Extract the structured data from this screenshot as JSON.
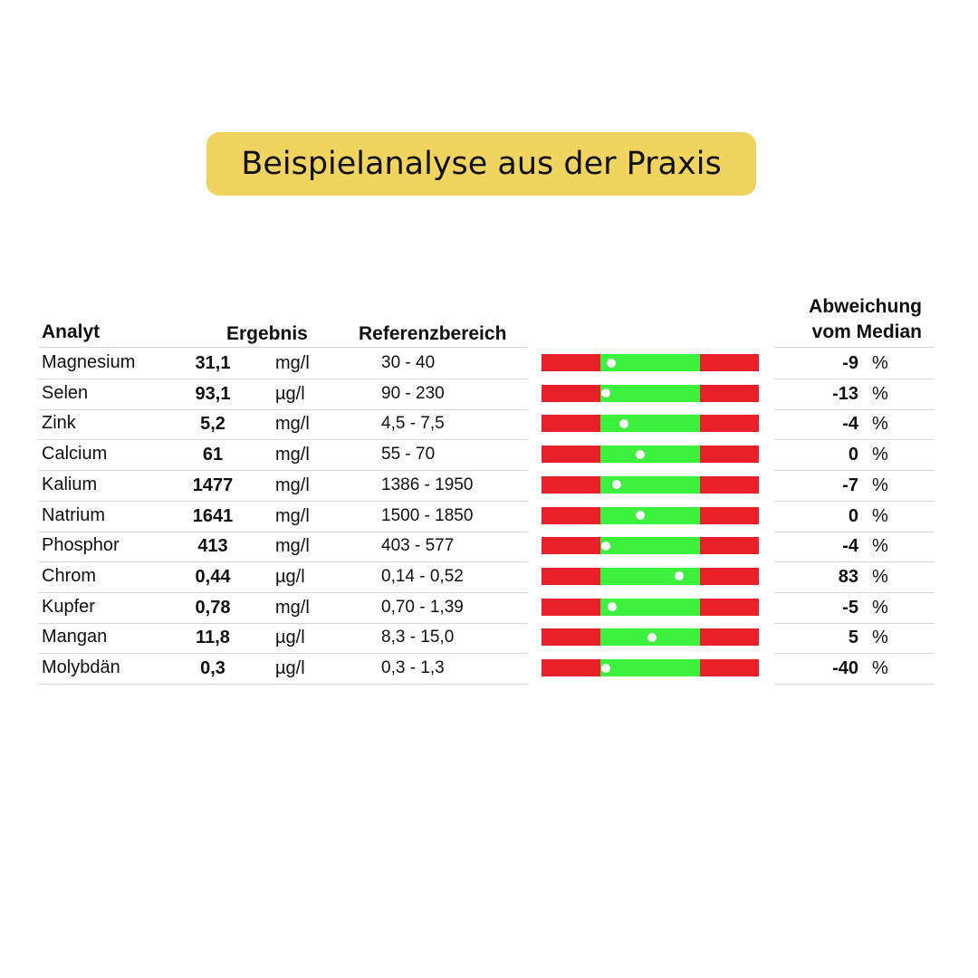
{
  "header": {
    "title": "Beispielanalyse aus der Praxis"
  },
  "table": {
    "columns": {
      "analyte": "Analyt",
      "result": "Ergebnis",
      "reference": "Referenzbereich",
      "deviation": [
        "Abweichung",
        "vom Median"
      ]
    },
    "rows": [
      {
        "analyte": "Magnesium",
        "result": "31,1",
        "unit": "mg/l",
        "reference": "30 - 40",
        "deviation": -9,
        "deviation_unit": "%"
      },
      {
        "analyte": "Selen",
        "result": "93,1",
        "unit": "µg/l",
        "reference": "90 - 230",
        "deviation": -13,
        "deviation_unit": "%"
      },
      {
        "analyte": "Zink",
        "result": "5,2",
        "unit": "mg/l",
        "reference": "4,5 - 7,5",
        "deviation": -4,
        "deviation_unit": "%"
      },
      {
        "analyte": "Calcium",
        "result": "61",
        "unit": "mg/l",
        "reference": "55 - 70",
        "deviation": 0,
        "deviation_unit": "%"
      },
      {
        "analyte": "Kalium",
        "result": "1477",
        "unit": "mg/l",
        "reference": "1386 - 1950",
        "deviation": -7,
        "deviation_unit": "%"
      },
      {
        "analyte": "Natrium",
        "result": "1641",
        "unit": "mg/l",
        "reference": "1500 - 1850",
        "deviation": 0,
        "deviation_unit": "%"
      },
      {
        "analyte": "Phosphor",
        "result": "413",
        "unit": "mg/l",
        "reference": "403 - 577",
        "deviation": -4,
        "deviation_unit": "%"
      },
      {
        "analyte": "Chrom",
        "result": "0,44",
        "unit": "µg/l",
        "reference": "0,14 - 0,52",
        "deviation": 83,
        "deviation_unit": "%"
      },
      {
        "analyte": "Kupfer",
        "result": "0,78",
        "unit": "mg/l",
        "reference": "0,70 - 1,39",
        "deviation": -5,
        "deviation_unit": "%"
      },
      {
        "analyte": "Mangan",
        "result": "11,8",
        "unit": "µg/l",
        "reference": "8,3 - 15,0",
        "deviation": 5,
        "deviation_unit": "%"
      },
      {
        "analyte": "Molybdän",
        "result": "0,3",
        "unit": "µg/l",
        "reference": "0,3 - 1,3",
        "deviation": -40,
        "deviation_unit": "%"
      }
    ]
  }
}
